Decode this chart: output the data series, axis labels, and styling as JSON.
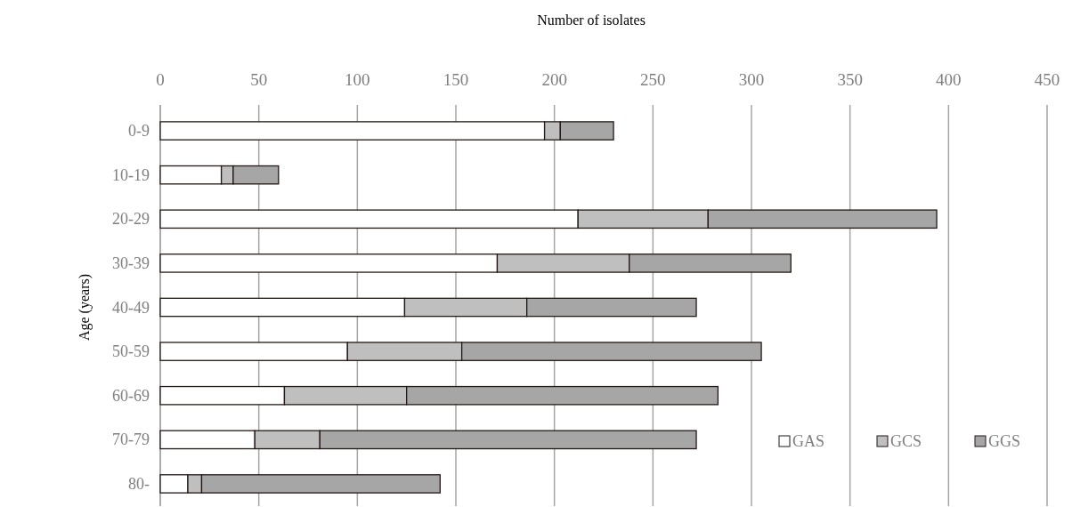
{
  "chart_data": {
    "type": "bar",
    "orientation": "horizontal",
    "stacked": true,
    "xlabel": "Number of isolates",
    "ylabel": "Age (years)",
    "categories": [
      "0-9",
      "10-19",
      "20-29",
      "30-39",
      "40-49",
      "50-59",
      "60-69",
      "70-79",
      "80-"
    ],
    "series": [
      {
        "name": "GAS",
        "color": "#ffffff",
        "values": [
          195,
          31,
          212,
          171,
          124,
          95,
          63,
          48,
          14
        ]
      },
      {
        "name": "GCS",
        "color": "#bfbfbf",
        "values": [
          8,
          6,
          66,
          67,
          62,
          58,
          62,
          33,
          7
        ]
      },
      {
        "name": "GGS",
        "color": "#a6a6a6",
        "values": [
          27,
          23,
          116,
          82,
          86,
          152,
          158,
          191,
          121
        ]
      }
    ],
    "xlim": [
      0,
      450
    ],
    "xticks": [
      0,
      50,
      100,
      150,
      200,
      250,
      300,
      350,
      400,
      450
    ],
    "grid": "x",
    "legend": "bottom right"
  }
}
